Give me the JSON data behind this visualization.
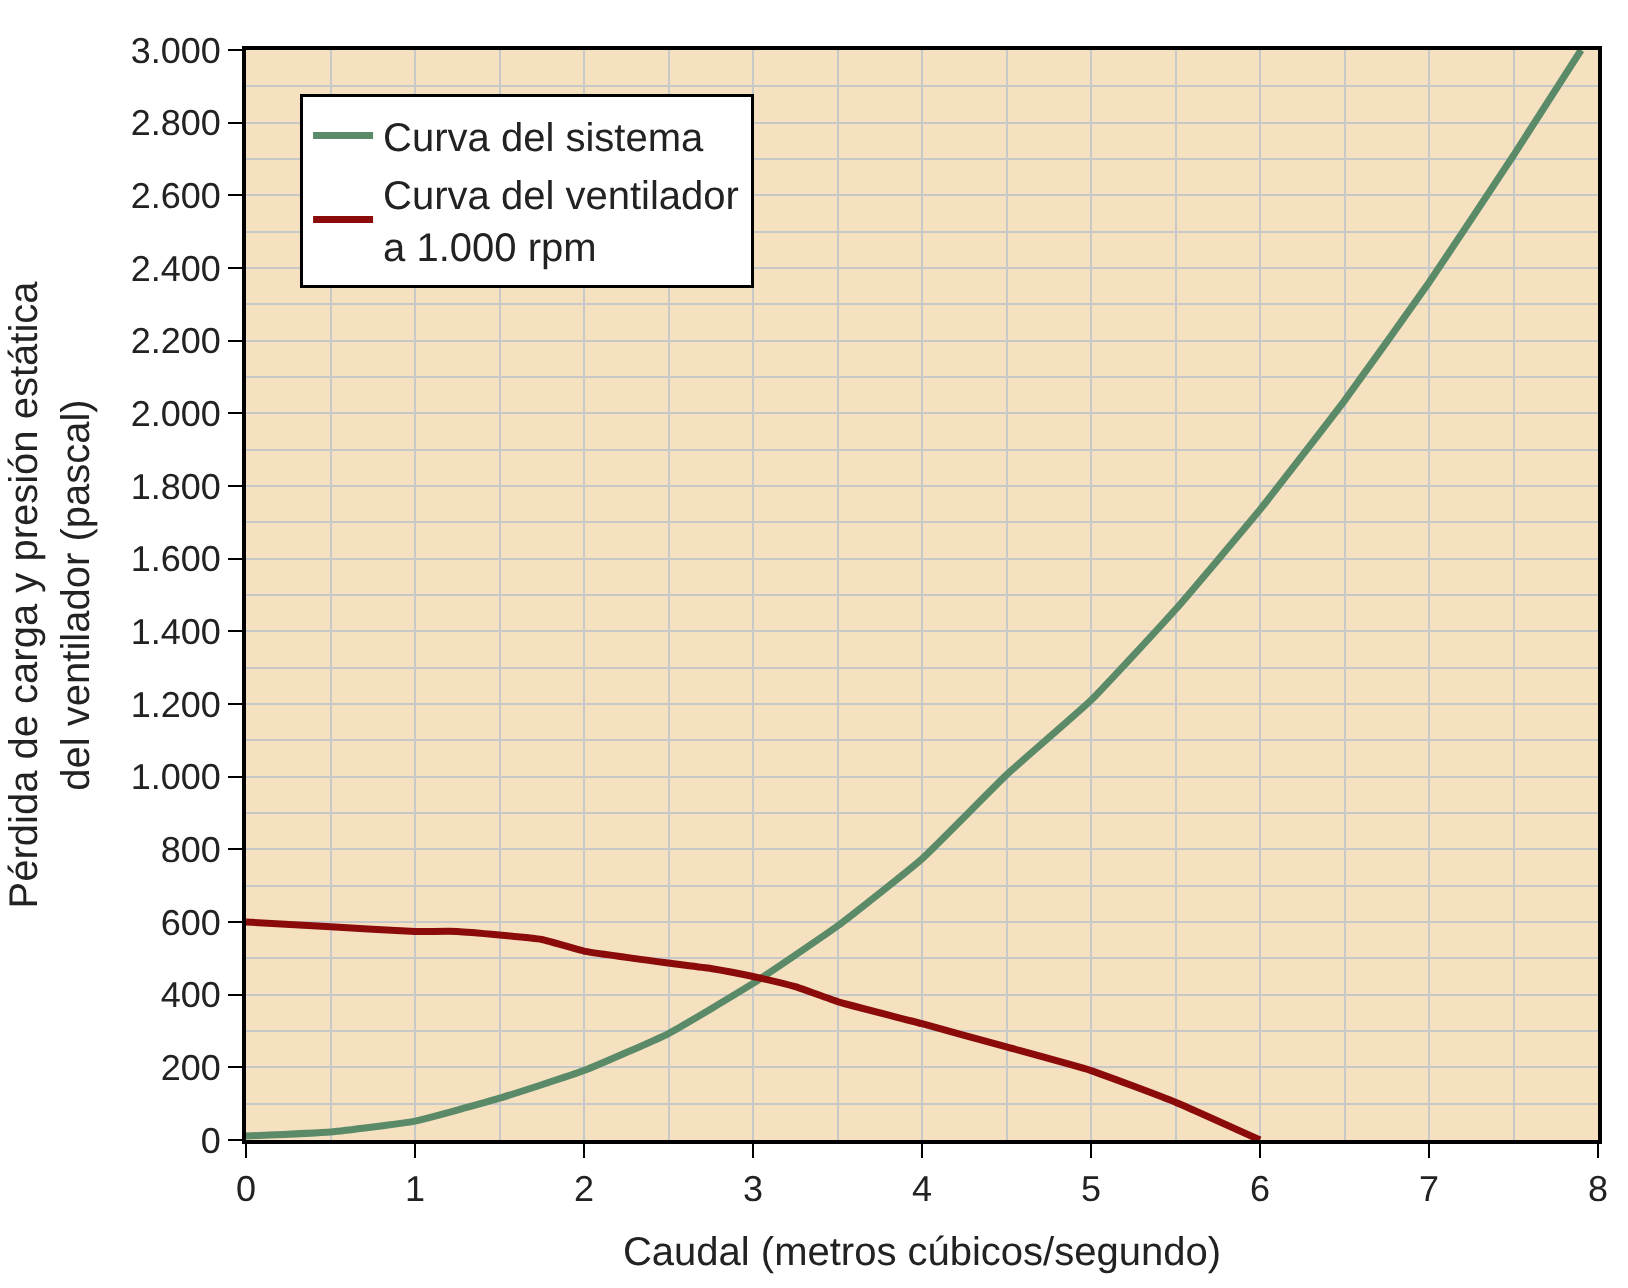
{
  "chart_data": {
    "type": "line",
    "xlabel": "Caudal (metros cúbicos/segundo)",
    "ylabel": "Pérdida de carga y presión estática\ndel ventilador (pascal)",
    "xlim": [
      0,
      8
    ],
    "xticks": [
      0,
      1,
      2,
      3,
      4,
      5,
      6,
      7,
      8
    ],
    "ylim": [
      0,
      3000
    ],
    "yticks": [
      {
        "value": 0,
        "label": "0"
      },
      {
        "value": 200,
        "label": "200"
      },
      {
        "value": 400,
        "label": "400"
      },
      {
        "value": 600,
        "label": "600"
      },
      {
        "value": 800,
        "label": "800"
      },
      {
        "value": 1000,
        "label": "1.000"
      },
      {
        "value": 1200,
        "label": "1.200"
      },
      {
        "value": 1400,
        "label": "1.400"
      },
      {
        "value": 1600,
        "label": "1.600"
      },
      {
        "value": 1800,
        "label": "1.800"
      },
      {
        "value": 2000,
        "label": "2.000"
      },
      {
        "value": 2200,
        "label": "2.200"
      },
      {
        "value": 2400,
        "label": "2.400"
      },
      {
        "value": 2600,
        "label": "2.600"
      },
      {
        "value": 2800,
        "label": "2.800"
      },
      {
        "value": 3000,
        "label": "3.000"
      }
    ],
    "grid": true,
    "legend": "top left",
    "marker": "none",
    "line_style": "solid",
    "series": [
      {
        "name": "Curva del sistema",
        "color": "#5a8a68",
        "x": [
          0,
          0.5,
          1,
          1.5,
          2,
          2.5,
          3,
          3.5,
          4,
          4.5,
          5,
          5.5,
          6,
          6.5,
          7,
          7.5,
          7.9
        ],
        "values": [
          11,
          22,
          52,
          115,
          191,
          293,
          431,
          589,
          774,
          1005,
          1210,
          1460,
          1735,
          2035,
          2360,
          2710,
          3000
        ]
      },
      {
        "name": "Curva del ventilador\na 1.000 rpm",
        "color": "#8b0a0a",
        "x": [
          0,
          0.5,
          1,
          1.25,
          1.75,
          2,
          2.5,
          2.75,
          3,
          3.25,
          3.5,
          4,
          4.5,
          5,
          5.5,
          6
        ],
        "values": [
          600,
          587,
          574,
          574,
          552,
          520,
          487,
          472,
          450,
          422,
          381,
          320,
          256,
          191,
          104,
          0
        ]
      }
    ]
  }
}
